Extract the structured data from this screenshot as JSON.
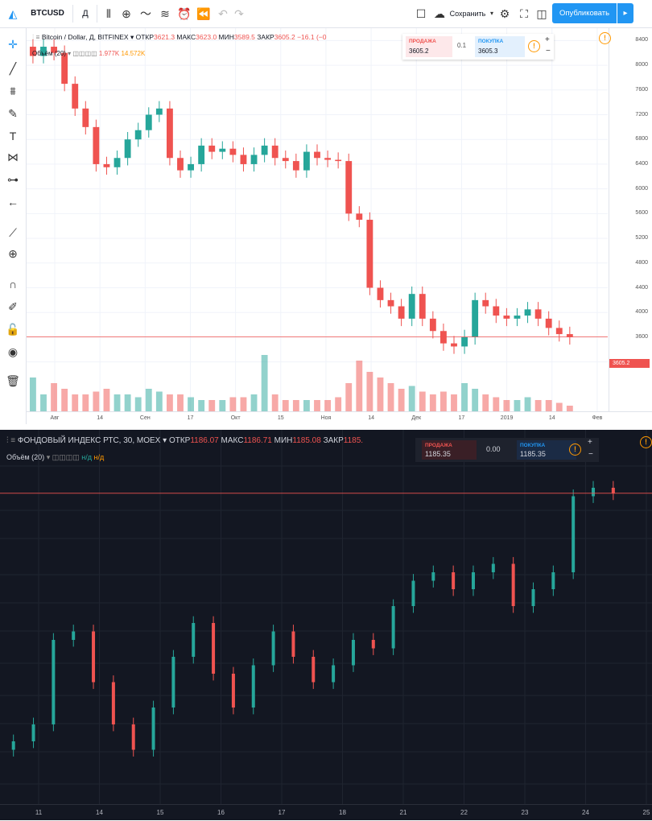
{
  "top": {
    "toolbar": {
      "symbol": "BTCUSD",
      "interval": "Д",
      "save_label": "Сохранить",
      "publish_label": "Опубликовать"
    },
    "legend": {
      "title": "Bitcoin / Dollar, Д, BITFINEX",
      "open_label": "ОТКР",
      "open": "3621.3",
      "high_label": "МАКС",
      "high": "3623.0",
      "low_label": "МИН",
      "low": "3589.5",
      "close_label": "ЗАКР",
      "close": "3605.2",
      "change": "−16.1 (−0"
    },
    "volume": {
      "label": "Объём (20)",
      "v1": "1.977K",
      "v2": "14.572K"
    },
    "trade": {
      "sell_label": "ПРОДАЖА",
      "sell": "3605.2",
      "spread": "0.1",
      "buy_label": "ПОКУПКА",
      "buy": "3605.3"
    },
    "price_tag": "3605.2",
    "y_ticks": [
      "8400",
      "8000",
      "7600",
      "7200",
      "6800",
      "6400",
      "6000",
      "5600",
      "5200",
      "4800",
      "4400",
      "4000",
      "3600",
      "3200"
    ],
    "x_ticks": [
      "Авг",
      "14",
      "Сен",
      "17",
      "Окт",
      "15",
      "Ноя",
      "14",
      "Дек",
      "17",
      "2019",
      "14",
      "Фев"
    ],
    "colors": {
      "up": "#26a69a",
      "down": "#ef5350",
      "accent": "#2196f3"
    }
  },
  "bottom": {
    "legend": {
      "title": "ФОНДОВЫЙ ИНДЕКС РТС, 30, MOEX",
      "open_label": "ОТКР",
      "open": "1186.07",
      "high_label": "МАКС",
      "high": "1186.71",
      "low_label": "МИН",
      "low": "1185.08",
      "close_label": "ЗАКР",
      "close": "1185."
    },
    "volume": {
      "label": "Объём (20)",
      "v1": "н/д",
      "v2": "н/д"
    },
    "trade": {
      "sell_label": "ПРОДАЖА",
      "sell": "1185.35",
      "spread": "0.00",
      "buy_label": "ПОКУПКА",
      "buy": "1185.35"
    },
    "x_ticks": [
      "11",
      "14",
      "15",
      "16",
      "17",
      "18",
      "21",
      "22",
      "23",
      "24",
      "25"
    ],
    "colors": {
      "background": "#131722",
      "up": "#26a69a",
      "down": "#ef5350"
    }
  },
  "chart_data": [
    {
      "type": "candlestick",
      "title": "Bitcoin / Dollar, Д, BITFINEX",
      "x_ticks": [
        "Авг",
        "14",
        "Сен",
        "17",
        "Окт",
        "15",
        "Ноя",
        "14",
        "Дек",
        "17",
        "2019",
        "14",
        "Фев"
      ],
      "ylim": [
        3000,
        8600
      ],
      "close_series": [
        8150,
        8300,
        8200,
        7700,
        7300,
        7000,
        6400,
        6350,
        6500,
        6800,
        6950,
        7200,
        7300,
        6500,
        6300,
        6400,
        6700,
        6600,
        6650,
        6550,
        6400,
        6550,
        6700,
        6500,
        6450,
        6300,
        6600,
        6500,
        6470,
        6450,
        5600,
        5500,
        4400,
        4200,
        4100,
        3900,
        4300,
        3900,
        3700,
        3500,
        3450,
        3600,
        4200,
        4100,
        3950,
        3900,
        3950,
        4050,
        3900,
        3750,
        3650,
        3600
      ],
      "volume_series_relative": [
        0.6,
        0.3,
        0.5,
        0.4,
        0.3,
        0.3,
        0.35,
        0.4,
        0.3,
        0.3,
        0.25,
        0.4,
        0.35,
        0.3,
        0.3,
        0.25,
        0.2,
        0.2,
        0.2,
        0.25,
        0.25,
        0.3,
        1.0,
        0.3,
        0.2,
        0.2,
        0.2,
        0.2,
        0.2,
        0.25,
        0.5,
        0.9,
        0.7,
        0.6,
        0.5,
        0.4,
        0.45,
        0.35,
        0.3,
        0.35,
        0.3,
        0.5,
        0.4,
        0.3,
        0.25,
        0.2,
        0.2,
        0.25,
        0.2,
        0.2,
        0.15,
        0.1
      ]
    },
    {
      "type": "candlestick",
      "title": "ФОНДОВЫЙ ИНДЕКС РТС, 30, MOEX",
      "x_ticks": [
        "11",
        "14",
        "15",
        "16",
        "17",
        "18",
        "21",
        "22",
        "23",
        "24",
        "25"
      ],
      "ylim": [
        1150,
        1190
      ],
      "close_series": [
        1156,
        1158,
        1168,
        1169,
        1163,
        1158,
        1155,
        1160,
        1166,
        1170,
        1164,
        1160,
        1165,
        1169,
        1166,
        1163,
        1165,
        1168,
        1167,
        1172,
        1175,
        1176,
        1174,
        1176,
        1177,
        1172,
        1174,
        1176,
        1185,
        1186,
        1185.35
      ]
    }
  ]
}
